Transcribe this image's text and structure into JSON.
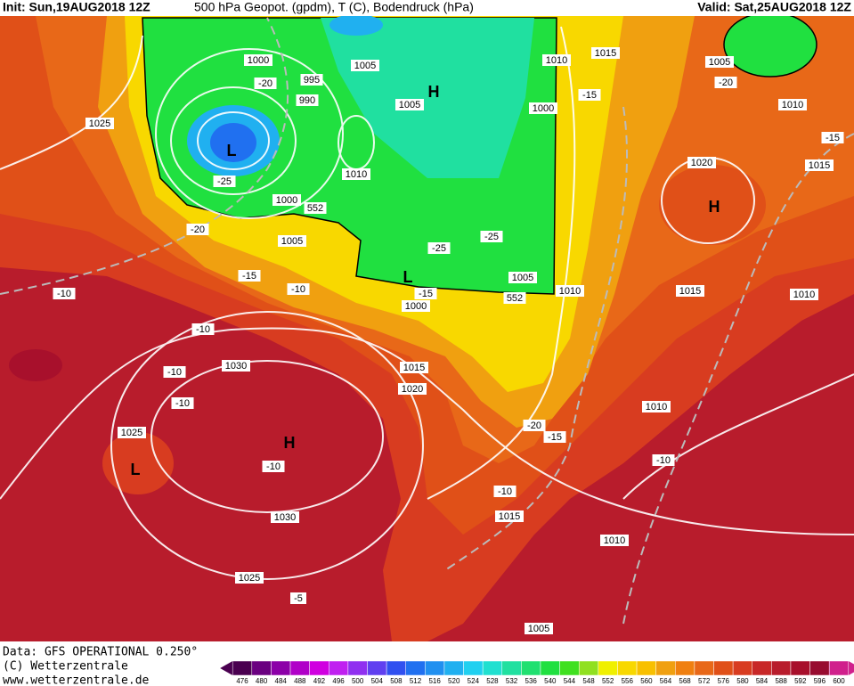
{
  "header": {
    "init": "Init: Sun,19AUG2018 12Z",
    "title": "500 hPa Geopot. (gpdm), T (C), Bodendruck (hPa)",
    "valid": "Valid: Sat,25AUG2018 12Z"
  },
  "footer": [
    "Data: GFS OPERATIONAL 0.250°",
    "(C) Wetterzentrale",
    "www.wetterzentrale.de"
  ],
  "contour_labels": [
    1000,
    995,
    990,
    1005,
    1005,
    1010,
    1010,
    1015,
    1000,
    1025,
    -20,
    -25,
    -20,
    1000,
    1005,
    -15,
    -10,
    -10,
    -10,
    -25,
    -25,
    1005,
    -15,
    1000,
    1010,
    -15,
    1020,
    1015,
    1005,
    -20,
    1010,
    -15,
    1015,
    1010,
    1030,
    -10,
    -10,
    1025,
    -10,
    1030,
    1015,
    1020,
    -20,
    -15,
    1010,
    -10,
    -10,
    1015,
    1010,
    1025,
    -5,
    1005,
    552,
    552
  ],
  "centers": [
    "H",
    "L",
    "H",
    "L",
    "H",
    "L"
  ],
  "legend": {
    "labels": [
      476,
      480,
      484,
      488,
      492,
      496,
      500,
      504,
      508,
      512,
      516,
      520,
      524,
      528,
      532,
      536,
      540,
      544,
      548,
      552,
      556,
      560,
      564,
      568,
      572,
      576,
      580,
      584,
      588,
      592,
      596,
      600
    ],
    "colors": [
      "#4a0050",
      "#6a0080",
      "#8c00a8",
      "#b000c8",
      "#d000e0",
      "#c020f0",
      "#9030f0",
      "#6040f0",
      "#3050f0",
      "#2070f0",
      "#2090f0",
      "#20b0f0",
      "#20d0f0",
      "#20e0d0",
      "#20e0a0",
      "#20e070",
      "#20e040",
      "#40e020",
      "#90e020",
      "#f0f000",
      "#f8d800",
      "#f8c000",
      "#f0a010",
      "#f08010",
      "#e86818",
      "#e05018",
      "#d83c20",
      "#c82828",
      "#b81c2c",
      "#a8102c",
      "#980c30",
      "#d0208c"
    ]
  }
}
